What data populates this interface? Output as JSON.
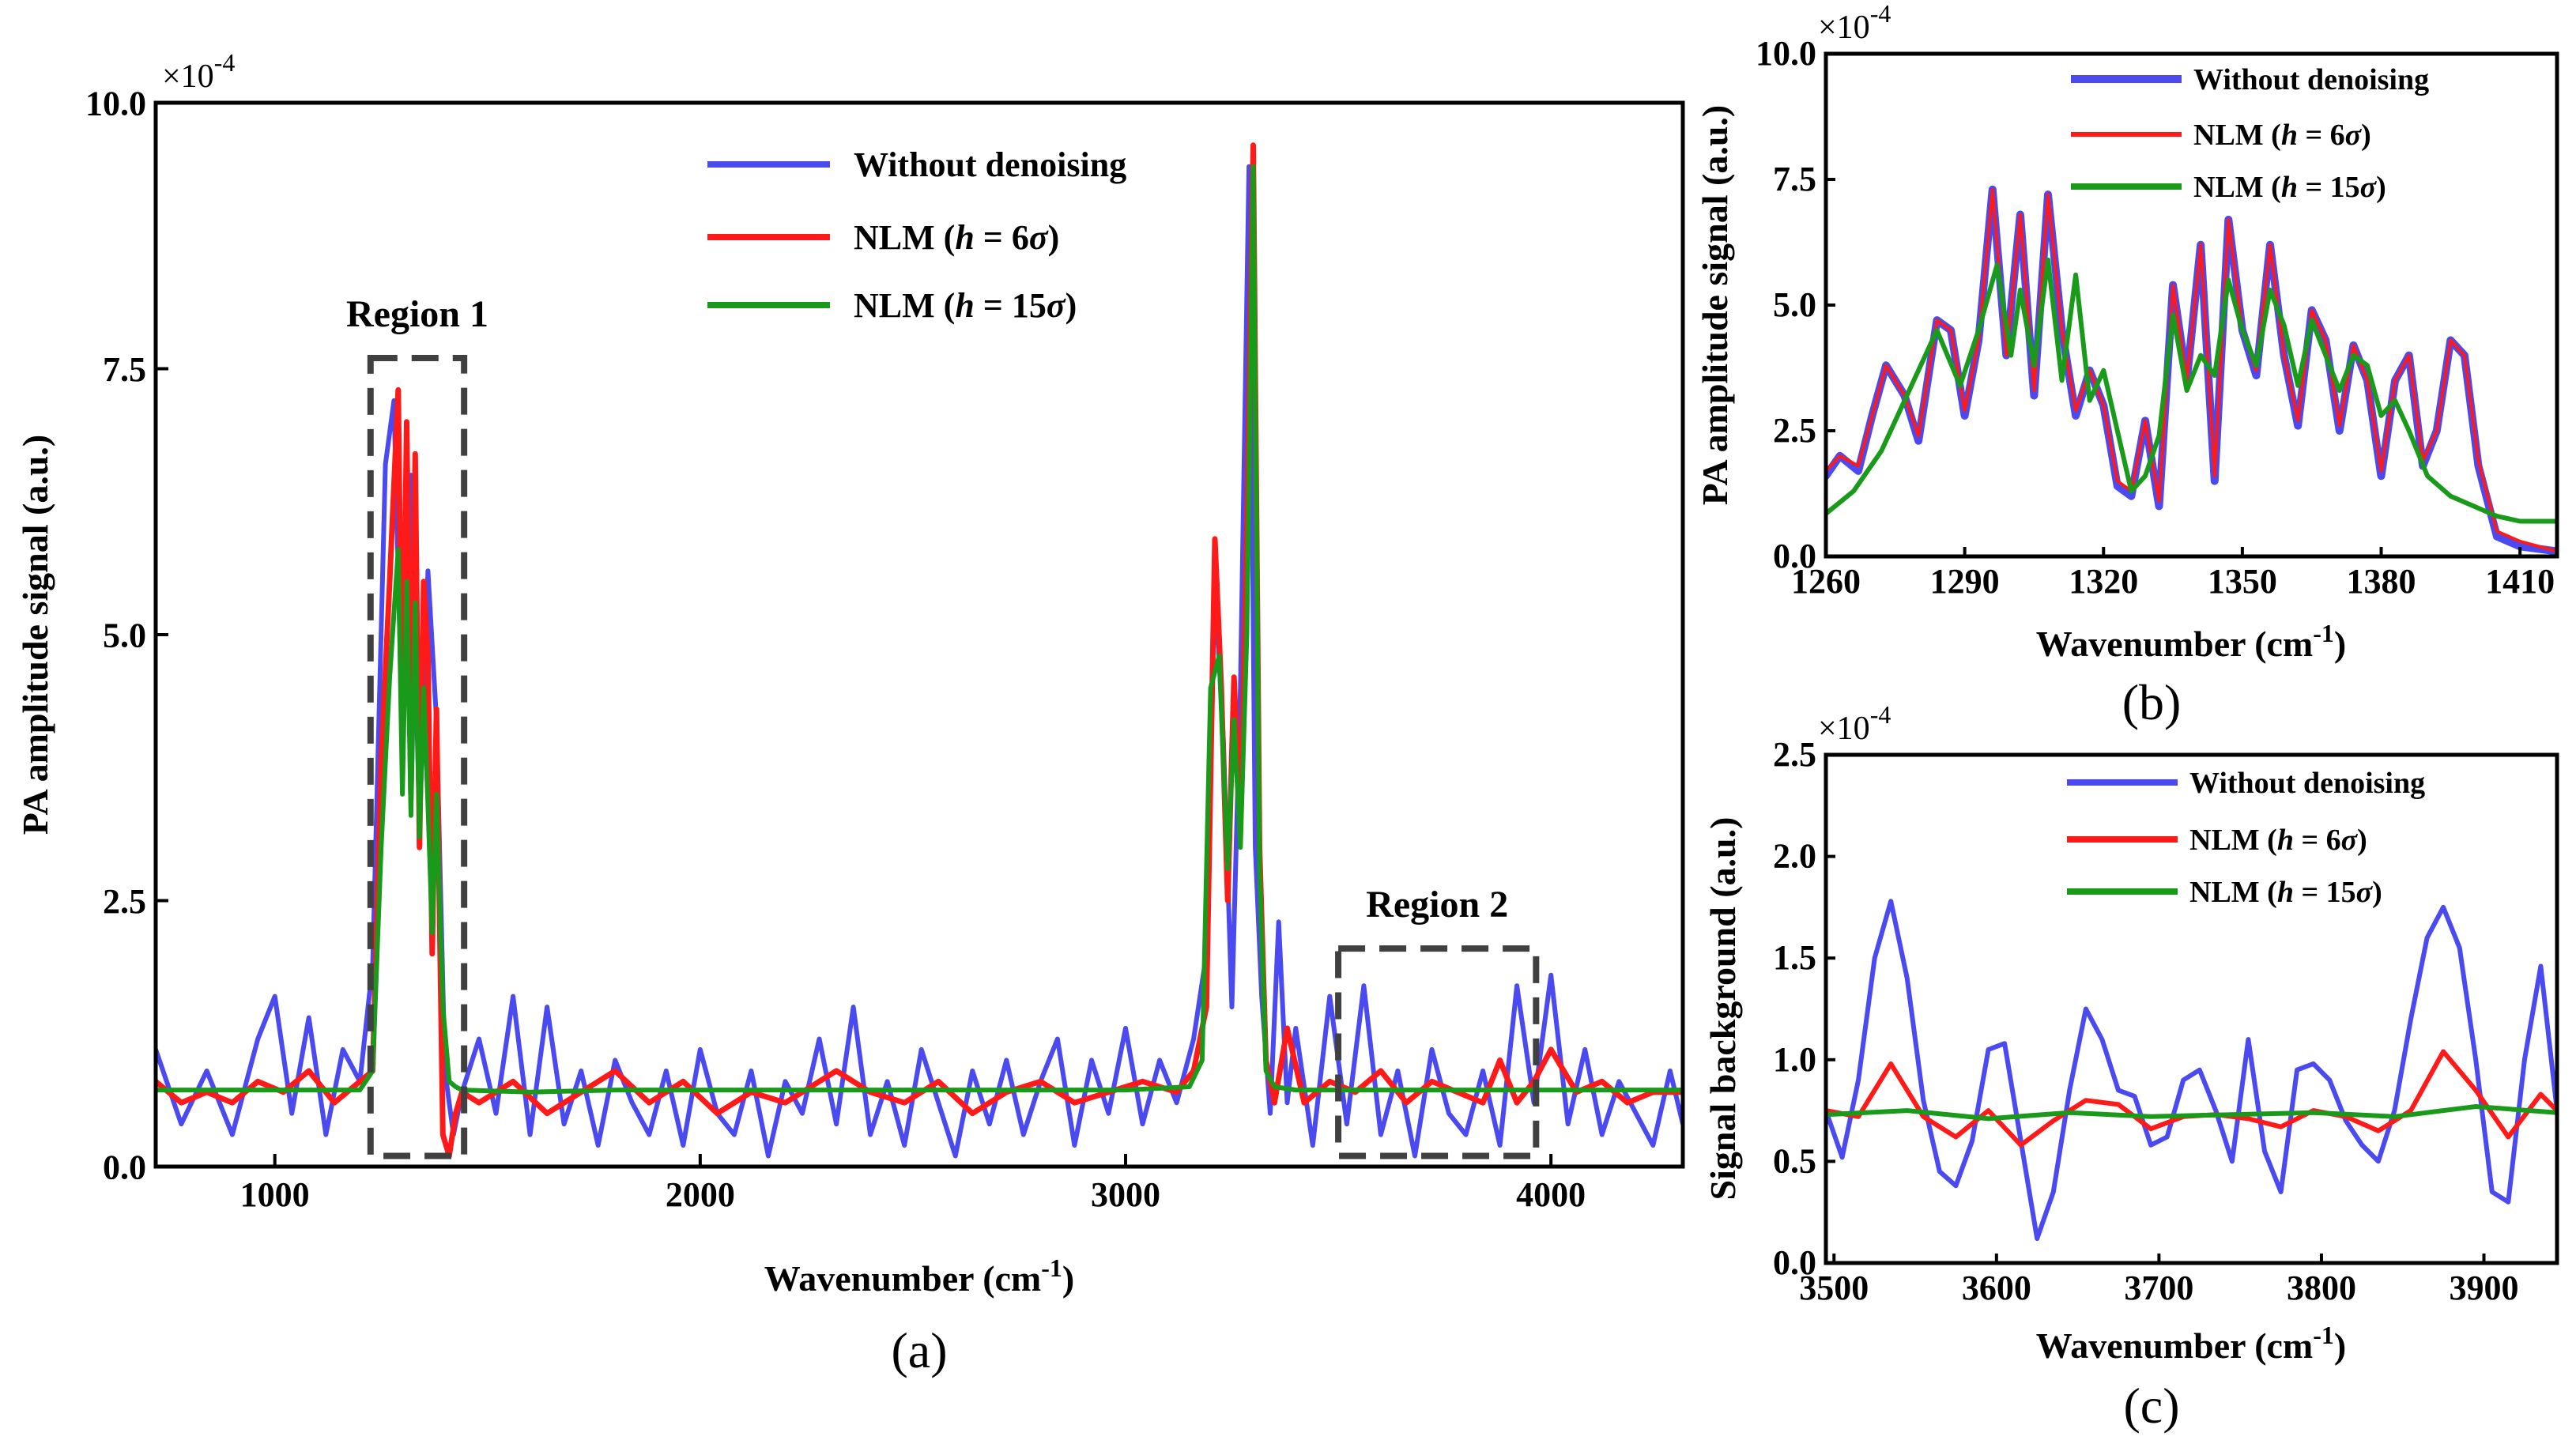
{
  "colors": {
    "without": "#4a4af0",
    "nlm6": "#ff1a1a",
    "nlm15": "#1a9a1a",
    "box": "#404040"
  },
  "chart_data": [
    {
      "id": "a",
      "type": "line",
      "panel_label": "(a)",
      "xlabel": "Wavenumber (cm",
      "xlabel_sup": "-1",
      "xlabel_end": ")",
      "ylabel": "PA amplitude signal (a.u.)",
      "y_scale": "×10",
      "y_scale_exp": "-4",
      "xlim": [
        720,
        4310
      ],
      "ylim": [
        0,
        10
      ],
      "xticks": [
        1000,
        2000,
        3000,
        4000
      ],
      "xtick_labels": [
        "1000",
        "2000",
        "3000",
        "4000"
      ],
      "yticks": [
        0,
        2.5,
        5,
        7.5,
        10
      ],
      "ytick_labels": [
        "0.0",
        "2.5",
        "5.0",
        "7.5",
        "10.0"
      ],
      "legend": [
        "Without denoising",
        "NLM (",
        "h",
        " = 6",
        "σ",
        ")",
        " = 15"
      ],
      "regions": [
        {
          "label": "Region 1",
          "x0": 1225,
          "x1": 1445,
          "y0": 0.1,
          "y1": 7.6
        },
        {
          "label": "Region 2",
          "x0": 3500,
          "x1": 3965,
          "y0": 0.1,
          "y1": 2.05
        }
      ],
      "series": [
        {
          "name": "Without denoising",
          "key": "without",
          "x": [
            720,
            780,
            840,
            900,
            960,
            1000,
            1040,
            1080,
            1120,
            1160,
            1200,
            1230,
            1260,
            1280,
            1300,
            1320,
            1340,
            1360,
            1380,
            1400,
            1420,
            1440,
            1480,
            1520,
            1560,
            1600,
            1640,
            1680,
            1720,
            1760,
            1800,
            1840,
            1880,
            1920,
            1960,
            2000,
            2040,
            2080,
            2120,
            2160,
            2200,
            2240,
            2280,
            2320,
            2360,
            2400,
            2440,
            2480,
            2520,
            2560,
            2600,
            2640,
            2680,
            2720,
            2760,
            2800,
            2840,
            2880,
            2920,
            2960,
            3000,
            3040,
            3080,
            3120,
            3160,
            3190,
            3210,
            3230,
            3250,
            3270,
            3290,
            3305,
            3320,
            3340,
            3360,
            3380,
            3400,
            3440,
            3480,
            3520,
            3560,
            3600,
            3640,
            3680,
            3720,
            3760,
            3800,
            3840,
            3880,
            3920,
            3960,
            4000,
            4040,
            4080,
            4120,
            4160,
            4200,
            4240,
            4280,
            4310
          ],
          "y": [
            1.1,
            0.4,
            0.9,
            0.3,
            1.2,
            1.6,
            0.5,
            1.4,
            0.3,
            1.1,
            0.8,
            1.9,
            6.6,
            7.2,
            4.0,
            6.5,
            3.2,
            5.6,
            4.2,
            0.9,
            0.3,
            0.7,
            1.2,
            0.5,
            1.6,
            0.3,
            1.5,
            0.4,
            0.9,
            0.2,
            1.0,
            0.6,
            0.3,
            0.9,
            0.2,
            1.1,
            0.5,
            0.3,
            0.9,
            0.1,
            0.8,
            0.5,
            1.2,
            0.4,
            1.5,
            0.3,
            0.8,
            0.2,
            1.1,
            0.6,
            0.1,
            0.9,
            0.4,
            1.0,
            0.3,
            0.8,
            1.2,
            0.2,
            1.0,
            0.5,
            1.3,
            0.4,
            1.0,
            0.6,
            1.2,
            2.0,
            5.5,
            4.0,
            1.5,
            4.5,
            9.4,
            3.0,
            1.6,
            0.5,
            2.3,
            0.6,
            1.3,
            0.2,
            1.6,
            0.4,
            1.7,
            0.3,
            0.9,
            0.1,
            1.1,
            0.5,
            0.3,
            0.9,
            0.2,
            1.7,
            0.6,
            1.8,
            0.4,
            1.1,
            0.3,
            0.8,
            0.5,
            0.2,
            0.9,
            0.4
          ]
        },
        {
          "name": "NLM (h = 6σ)",
          "key": "nlm6",
          "x": [
            720,
            780,
            840,
            900,
            960,
            1020,
            1080,
            1140,
            1200,
            1230,
            1250,
            1270,
            1290,
            1300,
            1310,
            1320,
            1330,
            1340,
            1350,
            1360,
            1370,
            1380,
            1395,
            1410,
            1425,
            1440,
            1480,
            1560,
            1640,
            1720,
            1800,
            1880,
            1960,
            2040,
            2120,
            2200,
            2280,
            2320,
            2400,
            2480,
            2560,
            2640,
            2720,
            2800,
            2880,
            2960,
            3040,
            3120,
            3160,
            3190,
            3210,
            3225,
            3240,
            3255,
            3270,
            3285,
            3300,
            3315,
            3330,
            3350,
            3380,
            3420,
            3480,
            3540,
            3600,
            3660,
            3720,
            3780,
            3840,
            3880,
            3920,
            3960,
            4000,
            4060,
            4120,
            4180,
            4240,
            4310
          ],
          "y": [
            0.8,
            0.6,
            0.7,
            0.6,
            0.8,
            0.7,
            0.9,
            0.6,
            0.8,
            0.9,
            3.8,
            5.5,
            7.3,
            4.0,
            7.0,
            3.5,
            6.7,
            3.0,
            5.5,
            4.8,
            2.0,
            4.3,
            0.3,
            0.1,
            0.5,
            0.7,
            0.6,
            0.8,
            0.5,
            0.7,
            0.9,
            0.6,
            0.8,
            0.5,
            0.7,
            0.6,
            0.8,
            0.9,
            0.7,
            0.6,
            0.8,
            0.5,
            0.7,
            0.8,
            0.6,
            0.7,
            0.8,
            0.7,
            0.9,
            1.5,
            5.9,
            4.5,
            2.5,
            4.6,
            3.2,
            6.0,
            9.6,
            3.0,
            1.0,
            0.6,
            1.3,
            0.6,
            0.8,
            0.7,
            0.9,
            0.6,
            0.8,
            0.7,
            0.6,
            1.0,
            0.6,
            0.8,
            1.1,
            0.7,
            0.8,
            0.6,
            0.7,
            0.7
          ]
        },
        {
          "name": "NLM (h = 15σ)",
          "key": "nlm15",
          "x": [
            720,
            1000,
            1200,
            1230,
            1250,
            1270,
            1290,
            1300,
            1310,
            1320,
            1330,
            1340,
            1350,
            1360,
            1370,
            1380,
            1395,
            1410,
            1425,
            1440,
            1600,
            1800,
            2000,
            2200,
            2400,
            2600,
            2800,
            3000,
            3150,
            3180,
            3200,
            3220,
            3240,
            3255,
            3270,
            3285,
            3300,
            3315,
            3330,
            3350,
            3400,
            3500,
            3700,
            3900,
            4100,
            4310
          ],
          "y": [
            0.72,
            0.72,
            0.72,
            0.9,
            3.0,
            4.6,
            5.8,
            3.5,
            5.5,
            3.3,
            5.3,
            3.1,
            4.5,
            3.4,
            2.2,
            3.5,
            1.5,
            0.8,
            0.75,
            0.72,
            0.7,
            0.72,
            0.72,
            0.72,
            0.72,
            0.72,
            0.72,
            0.72,
            0.75,
            1.0,
            4.5,
            4.8,
            2.8,
            4.2,
            3.0,
            5.0,
            9.4,
            2.8,
            0.9,
            0.75,
            0.72,
            0.72,
            0.72,
            0.72,
            0.72,
            0.72
          ]
        }
      ]
    },
    {
      "id": "b",
      "type": "line",
      "panel_label": "(b)",
      "xlabel": "Wavenumber (cm",
      "xlabel_sup": "-1",
      "xlabel_end": ")",
      "ylabel": "PA amplitude signal (a.u.)",
      "y_scale": "×10",
      "y_scale_exp": "-4",
      "xlim": [
        1260,
        1418
      ],
      "ylim": [
        0,
        10
      ],
      "xticks": [
        1260,
        1290,
        1320,
        1350,
        1380,
        1410
      ],
      "xtick_labels": [
        "1260",
        "1290",
        "1320",
        "1350",
        "1380",
        "1410"
      ],
      "yticks": [
        0,
        2.5,
        5,
        7.5,
        10
      ],
      "ytick_labels": [
        "0.0",
        "2.5",
        "5.0",
        "7.5",
        "10.0"
      ],
      "series": [
        {
          "name": "Without denoising",
          "key": "without",
          "x": [
            1260,
            1263,
            1267,
            1270,
            1273,
            1277,
            1280,
            1284,
            1287,
            1290,
            1293,
            1296,
            1299,
            1302,
            1305,
            1308,
            1311,
            1314,
            1317,
            1320,
            1323,
            1326,
            1329,
            1332,
            1335,
            1338,
            1341,
            1344,
            1347,
            1350,
            1353,
            1356,
            1359,
            1362,
            1365,
            1368,
            1371,
            1374,
            1377,
            1380,
            1383,
            1386,
            1389,
            1392,
            1395,
            1398,
            1401,
            1405,
            1410,
            1418
          ],
          "y": [
            1.6,
            2.0,
            1.7,
            2.8,
            3.8,
            3.2,
            2.3,
            4.7,
            4.5,
            2.8,
            4.3,
            7.3,
            4.0,
            6.8,
            3.2,
            7.2,
            4.5,
            2.8,
            3.7,
            3.0,
            1.4,
            1.2,
            2.7,
            1.0,
            5.4,
            3.5,
            6.2,
            1.5,
            6.7,
            4.5,
            3.6,
            6.2,
            4.0,
            2.6,
            4.9,
            4.3,
            2.5,
            4.2,
            3.5,
            1.6,
            3.5,
            4.0,
            1.8,
            2.5,
            4.3,
            4.0,
            1.8,
            0.4,
            0.2,
            0.1
          ]
        },
        {
          "name": "NLM (h = 6σ)",
          "key": "nlm6",
          "x": [
            1260,
            1263,
            1267,
            1270,
            1273,
            1277,
            1280,
            1284,
            1287,
            1290,
            1293,
            1296,
            1299,
            1302,
            1305,
            1308,
            1311,
            1314,
            1317,
            1320,
            1323,
            1326,
            1329,
            1332,
            1335,
            1338,
            1341,
            1344,
            1347,
            1350,
            1353,
            1356,
            1359,
            1362,
            1365,
            1368,
            1371,
            1374,
            1377,
            1380,
            1383,
            1386,
            1389,
            1392,
            1395,
            1398,
            1401,
            1405,
            1410,
            1418
          ],
          "y": [
            1.7,
            2.0,
            1.8,
            2.8,
            3.8,
            3.2,
            2.4,
            4.7,
            4.5,
            2.9,
            4.3,
            7.3,
            4.0,
            6.8,
            3.3,
            7.2,
            4.5,
            2.9,
            3.7,
            3.0,
            1.5,
            1.3,
            2.7,
            1.1,
            5.4,
            3.5,
            6.2,
            1.6,
            6.7,
            4.5,
            3.7,
            6.2,
            4.0,
            2.7,
            4.9,
            4.3,
            2.6,
            4.2,
            3.5,
            1.7,
            3.5,
            4.0,
            1.9,
            2.5,
            4.3,
            4.0,
            1.9,
            0.5,
            0.3,
            0.1
          ]
        },
        {
          "name": "NLM (h = 15σ)",
          "key": "nlm15",
          "x": [
            1260,
            1266,
            1272,
            1278,
            1284,
            1289,
            1293,
            1297,
            1300,
            1302,
            1305,
            1308,
            1311,
            1314,
            1317,
            1320,
            1323,
            1326,
            1329,
            1332,
            1335,
            1338,
            1341,
            1344,
            1347,
            1350,
            1353,
            1356,
            1359,
            1362,
            1365,
            1368,
            1371,
            1374,
            1377,
            1380,
            1383,
            1386,
            1390,
            1395,
            1400,
            1405,
            1410,
            1418
          ],
          "y": [
            0.85,
            1.3,
            2.1,
            3.3,
            4.5,
            3.4,
            4.5,
            5.8,
            4.0,
            5.3,
            3.8,
            5.9,
            3.5,
            5.6,
            3.1,
            3.7,
            2.5,
            1.3,
            1.6,
            2.4,
            4.8,
            3.3,
            4.0,
            3.6,
            5.5,
            4.5,
            3.8,
            5.3,
            4.6,
            3.4,
            4.7,
            4.0,
            3.3,
            4.0,
            3.8,
            2.8,
            3.1,
            2.5,
            1.6,
            1.2,
            1.0,
            0.8,
            0.7,
            0.7
          ]
        }
      ]
    },
    {
      "id": "c",
      "type": "line",
      "panel_label": "(c)",
      "xlabel": "Wavenumber (cm",
      "xlabel_sup": "-1",
      "xlabel_end": ")",
      "ylabel": "Signal background (a.u.)",
      "y_scale": "×10",
      "y_scale_exp": "-4",
      "xlim": [
        3495,
        3945
      ],
      "ylim": [
        0,
        2.5
      ],
      "xticks": [
        3500,
        3600,
        3700,
        3800,
        3900
      ],
      "xtick_labels": [
        "3500",
        "3600",
        "3700",
        "3800",
        "3900"
      ],
      "yticks": [
        0,
        0.5,
        1.0,
        1.5,
        2.0,
        2.5
      ],
      "ytick_labels": [
        "0.0",
        "0.5",
        "1.0",
        "1.5",
        "2.0",
        "2.5"
      ],
      "series": [
        {
          "name": "Without denoising",
          "key": "without",
          "x": [
            3495,
            3505,
            3515,
            3525,
            3535,
            3545,
            3555,
            3565,
            3575,
            3585,
            3595,
            3605,
            3615,
            3625,
            3635,
            3645,
            3655,
            3665,
            3675,
            3685,
            3695,
            3705,
            3715,
            3725,
            3735,
            3745,
            3755,
            3765,
            3775,
            3785,
            3795,
            3805,
            3815,
            3825,
            3835,
            3845,
            3855,
            3865,
            3875,
            3885,
            3895,
            3905,
            3915,
            3925,
            3935,
            3945
          ],
          "y": [
            0.75,
            0.52,
            0.9,
            1.5,
            1.78,
            1.4,
            0.8,
            0.45,
            0.38,
            0.6,
            1.05,
            1.08,
            0.6,
            0.12,
            0.35,
            0.85,
            1.25,
            1.1,
            0.85,
            0.82,
            0.58,
            0.62,
            0.9,
            0.95,
            0.75,
            0.5,
            1.1,
            0.55,
            0.35,
            0.95,
            0.98,
            0.9,
            0.7,
            0.58,
            0.5,
            0.75,
            1.2,
            1.6,
            1.75,
            1.55,
            1.0,
            0.35,
            0.3,
            1.0,
            1.46,
            0.75
          ]
        },
        {
          "name": "NLM (h = 6σ)",
          "key": "nlm6",
          "x": [
            3495,
            3515,
            3535,
            3555,
            3575,
            3595,
            3615,
            3635,
            3655,
            3675,
            3695,
            3715,
            3735,
            3755,
            3775,
            3795,
            3815,
            3835,
            3855,
            3875,
            3895,
            3915,
            3935,
            3945
          ],
          "y": [
            0.75,
            0.72,
            0.98,
            0.72,
            0.62,
            0.75,
            0.58,
            0.7,
            0.8,
            0.78,
            0.66,
            0.72,
            0.73,
            0.71,
            0.67,
            0.75,
            0.72,
            0.65,
            0.75,
            1.04,
            0.85,
            0.62,
            0.83,
            0.75
          ]
        },
        {
          "name": "NLM (h = 15σ)",
          "key": "nlm15",
          "x": [
            3495,
            3545,
            3595,
            3645,
            3695,
            3745,
            3795,
            3845,
            3895,
            3945
          ],
          "y": [
            0.73,
            0.75,
            0.71,
            0.74,
            0.72,
            0.73,
            0.74,
            0.72,
            0.77,
            0.74
          ]
        }
      ]
    }
  ]
}
